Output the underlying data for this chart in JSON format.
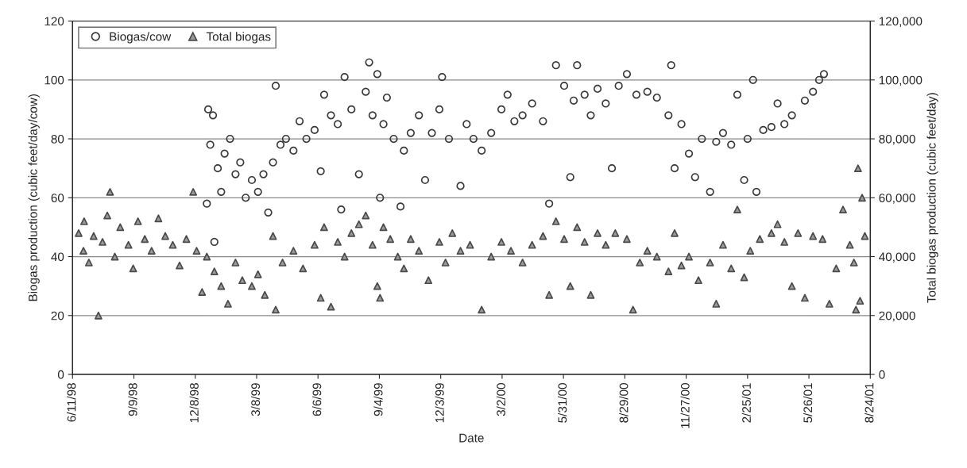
{
  "chart_data": {
    "type": "scatter",
    "xlabel": "Date",
    "ylabel": "Biogas production (cubic feet/day/cow)",
    "y2label": "Total biogas production (cubic feet/day)",
    "xlim": [
      "1998-06-11",
      "2001-08-24"
    ],
    "xticks": [
      {
        "value": "1998-06-11",
        "label": "6/11/98"
      },
      {
        "value": "1998-09-09",
        "label": "9/9/98"
      },
      {
        "value": "1998-12-08",
        "label": "12/8/98"
      },
      {
        "value": "1999-03-08",
        "label": "3/8/99"
      },
      {
        "value": "1999-06-06",
        "label": "6/6/99"
      },
      {
        "value": "1999-09-04",
        "label": "9/4/99"
      },
      {
        "value": "1999-12-03",
        "label": "12/3/99"
      },
      {
        "value": "2000-03-02",
        "label": "3/2/00"
      },
      {
        "value": "2000-05-31",
        "label": "5/31/00"
      },
      {
        "value": "2000-08-29",
        "label": "8/29/00"
      },
      {
        "value": "2000-11-27",
        "label": "11/27/00"
      },
      {
        "value": "2001-02-25",
        "label": "2/25/01"
      },
      {
        "value": "2001-05-26",
        "label": "5/26/01"
      },
      {
        "value": "2001-08-24",
        "label": "8/24/01"
      }
    ],
    "ylim": [
      0,
      120
    ],
    "yticks": [
      0,
      20,
      40,
      60,
      80,
      100,
      120
    ],
    "y2lim": [
      0,
      120000
    ],
    "y2ticks": [
      0,
      {
        "value": 20000,
        "label": "20,000"
      },
      {
        "value": 40000,
        "label": "40,000"
      },
      {
        "value": 60000,
        "label": "60,000"
      },
      {
        "value": 80000,
        "label": "80,000"
      },
      {
        "value": 100000,
        "label": "100,000"
      },
      {
        "value": 120000,
        "label": "120,000"
      }
    ],
    "grid": "y",
    "legend": "top left",
    "series": [
      {
        "name": "Biogas/cow",
        "color": "#3a3a3a",
        "marker": "circle",
        "x": [
          "1998-12-25",
          "1998-12-27",
          "1998-12-30",
          "1999-01-03",
          "1999-01-05",
          "1999-01-10",
          "1999-01-15",
          "1999-01-20",
          "1999-01-28",
          "1999-02-05",
          "1999-02-12",
          "1999-02-20",
          "1999-03-01",
          "1999-03-10",
          "1999-03-18",
          "1999-03-25",
          "1999-04-01",
          "1999-04-05",
          "1999-04-12",
          "1999-04-20",
          "1999-05-01",
          "1999-05-10",
          "1999-05-20",
          "1999-06-01",
          "1999-06-10",
          "1999-06-15",
          "1999-06-25",
          "1999-07-05",
          "1999-07-10",
          "1999-07-15",
          "1999-07-25",
          "1999-08-05",
          "1999-08-15",
          "1999-08-20",
          "1999-08-25",
          "1999-09-01",
          "1999-09-05",
          "1999-09-10",
          "1999-09-15",
          "1999-09-25",
          "1999-10-05",
          "1999-10-10",
          "1999-10-20",
          "1999-11-01",
          "1999-11-10",
          "1999-11-20",
          "1999-12-01",
          "1999-12-05",
          "1999-12-15",
          "2000-01-01",
          "2000-01-10",
          "2000-01-20",
          "2000-02-01",
          "2000-02-15",
          "2000-03-01",
          "2000-03-10",
          "2000-03-20",
          "2000-04-01",
          "2000-04-15",
          "2000-05-01",
          "2000-05-10",
          "2000-05-20",
          "2000-06-01",
          "2000-06-10",
          "2000-06-15",
          "2000-06-20",
          "2000-07-01",
          "2000-07-10",
          "2000-07-20",
          "2000-08-01",
          "2000-08-10",
          "2000-08-20",
          "2000-09-01",
          "2000-09-15",
          "2000-10-01",
          "2000-10-15",
          "2000-11-01",
          "2000-11-05",
          "2000-11-10",
          "2000-11-20",
          "2000-12-01",
          "2000-12-10",
          "2000-12-20",
          "2001-01-01",
          "2001-01-10",
          "2001-01-20",
          "2001-02-01",
          "2001-02-10",
          "2001-02-20",
          "2001-02-25",
          "2001-03-05",
          "2001-03-10",
          "2001-03-20",
          "2001-04-01",
          "2001-04-10",
          "2001-04-20",
          "2001-05-01",
          "2001-05-20",
          "2001-06-01",
          "2001-06-10",
          "2001-06-17"
        ],
        "values": [
          58,
          90,
          78,
          88,
          45,
          70,
          62,
          75,
          80,
          68,
          72,
          60,
          66,
          62,
          68,
          55,
          72,
          98,
          78,
          80,
          76,
          86,
          80,
          83,
          69,
          95,
          88,
          85,
          56,
          101,
          90,
          68,
          96,
          106,
          88,
          102,
          60,
          85,
          94,
          80,
          57,
          76,
          82,
          88,
          66,
          82,
          90,
          101,
          80,
          64,
          85,
          80,
          76,
          82,
          90,
          95,
          86,
          88,
          92,
          86,
          58,
          105,
          98,
          67,
          93,
          105,
          95,
          88,
          97,
          92,
          70,
          98,
          102,
          95,
          96,
          94,
          88,
          105,
          70,
          85,
          75,
          67,
          80,
          62,
          79,
          82,
          78,
          95,
          66,
          80,
          100,
          62,
          83,
          84,
          92,
          85,
          88,
          93,
          96,
          100,
          102
        ]
      },
      {
        "name": "Total biogas",
        "color": "#4a4a4a",
        "marker": "triangle",
        "axis": "y2",
        "x": [
          "1998-06-20",
          "1998-06-27",
          "1998-06-28",
          "1998-07-05",
          "1998-07-12",
          "1998-07-19",
          "1998-07-25",
          "1998-08-01",
          "1998-08-05",
          "1998-08-12",
          "1998-08-20",
          "1998-09-01",
          "1998-09-08",
          "1998-09-15",
          "1998-09-25",
          "1998-10-05",
          "1998-10-15",
          "1998-10-25",
          "1998-11-05",
          "1998-11-15",
          "1998-11-25",
          "1998-12-05",
          "1998-12-10",
          "1998-12-18",
          "1998-12-25",
          "1999-01-05",
          "1999-01-15",
          "1999-01-25",
          "1999-02-05",
          "1999-02-15",
          "1999-03-01",
          "1999-03-10",
          "1999-03-20",
          "1999-04-01",
          "1999-04-05",
          "1999-04-15",
          "1999-05-01",
          "1999-05-15",
          "1999-06-01",
          "1999-06-10",
          "1999-06-15",
          "1999-06-25",
          "1999-07-05",
          "1999-07-15",
          "1999-07-25",
          "1999-08-05",
          "1999-08-15",
          "1999-08-25",
          "1999-09-01",
          "1999-09-05",
          "1999-09-10",
          "1999-09-20",
          "1999-10-01",
          "1999-10-10",
          "1999-10-20",
          "1999-11-01",
          "1999-11-15",
          "1999-12-01",
          "1999-12-10",
          "1999-12-20",
          "2000-01-01",
          "2000-01-15",
          "2000-02-01",
          "2000-02-15",
          "2000-03-01",
          "2000-03-15",
          "2000-04-01",
          "2000-04-15",
          "2000-05-01",
          "2000-05-10",
          "2000-05-20",
          "2000-06-01",
          "2000-06-10",
          "2000-06-20",
          "2000-07-01",
          "2000-07-10",
          "2000-07-20",
          "2000-08-01",
          "2000-08-15",
          "2000-09-01",
          "2000-09-10",
          "2000-09-20",
          "2000-10-01",
          "2000-10-15",
          "2000-11-01",
          "2000-11-10",
          "2000-11-20",
          "2000-12-01",
          "2000-12-15",
          "2001-01-01",
          "2001-01-10",
          "2001-01-20",
          "2001-02-01",
          "2001-02-10",
          "2001-02-20",
          "2001-03-01",
          "2001-03-15",
          "2001-04-01",
          "2001-04-10",
          "2001-04-20",
          "2001-05-01",
          "2001-05-10",
          "2001-05-20",
          "2001-06-01",
          "2001-06-15",
          "2001-06-25",
          "2001-07-05",
          "2001-07-15",
          "2001-07-25",
          "2001-07-31",
          "2001-08-03",
          "2001-08-06",
          "2001-08-09",
          "2001-08-12",
          "2001-08-16"
        ],
        "values": [
          48000,
          42000,
          52000,
          38000,
          47000,
          20000,
          45000,
          54000,
          62000,
          40000,
          50000,
          44000,
          36000,
          52000,
          46000,
          42000,
          53000,
          47000,
          44000,
          37000,
          46000,
          62000,
          42000,
          28000,
          40000,
          35000,
          30000,
          24000,
          38000,
          32000,
          30000,
          34000,
          27000,
          47000,
          22000,
          38000,
          42000,
          36000,
          44000,
          26000,
          50000,
          23000,
          45000,
          40000,
          48000,
          51000,
          54000,
          44000,
          30000,
          26000,
          50000,
          46000,
          40000,
          36000,
          46000,
          42000,
          32000,
          45000,
          38000,
          48000,
          42000,
          44000,
          22000,
          40000,
          45000,
          42000,
          38000,
          44000,
          47000,
          27000,
          52000,
          46000,
          30000,
          50000,
          45000,
          27000,
          48000,
          44000,
          48000,
          46000,
          22000,
          38000,
          42000,
          40000,
          35000,
          48000,
          37000,
          40000,
          32000,
          38000,
          24000,
          44000,
          36000,
          56000,
          33000,
          42000,
          46000,
          48000,
          51000,
          45000,
          30000,
          48000,
          26000,
          47000,
          46000,
          24000,
          36000,
          56000,
          44000,
          38000,
          22000,
          70000,
          25000,
          60000,
          47000
        ]
      }
    ]
  }
}
